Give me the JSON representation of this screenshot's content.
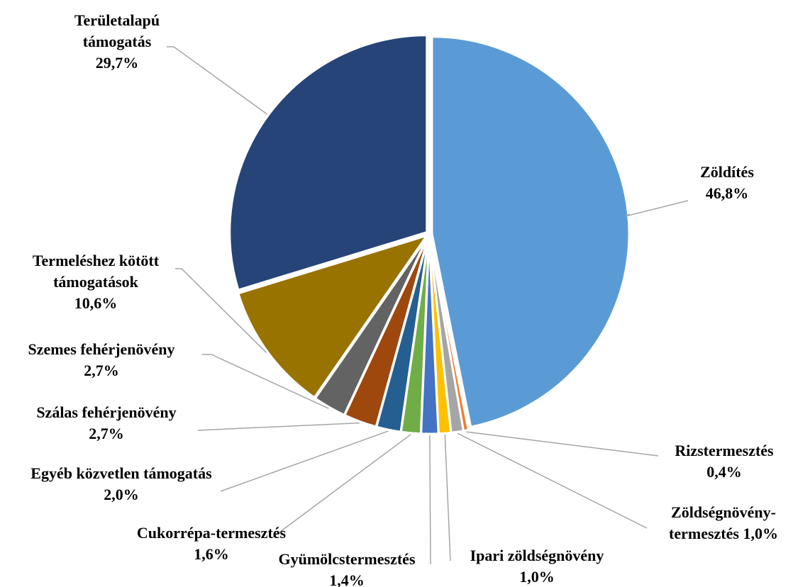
{
  "chart_data": {
    "type": "pie",
    "title": "",
    "slices": [
      {
        "label_lines": [
          "Zöldítés"
        ],
        "value_text": "46,8%",
        "value": 46.8,
        "color": "#5B9BD5"
      },
      {
        "label_lines": [
          "Rizstermesztés"
        ],
        "value_text": "0,4%",
        "value": 0.4,
        "color": "#ED7D31"
      },
      {
        "label_lines": [
          "Zöldségnövény-"
        ],
        "value_text": "termesztés 1,0%",
        "value": 1.0,
        "color": "#A5A5A5"
      },
      {
        "label_lines": [
          "Ipari zöldségnövény"
        ],
        "value_text": "1,0%",
        "value": 1.0,
        "color": "#FFC000"
      },
      {
        "label_lines": [
          "Gyümölcstermesztés"
        ],
        "value_text": "1,4%",
        "value": 1.4,
        "color": "#4472C4"
      },
      {
        "label_lines": [
          "Cukorrépa-termesztés"
        ],
        "value_text": "1,6%",
        "value": 1.6,
        "color": "#70AD47"
      },
      {
        "label_lines": [
          "Egyéb közvetlen támogatás"
        ],
        "value_text": "2,0%",
        "value": 2.0,
        "color": "#255E91"
      },
      {
        "label_lines": [
          "Szálas fehérjenövény"
        ],
        "value_text": "2,7%",
        "value": 2.7,
        "color": "#9E480E"
      },
      {
        "label_lines": [
          "Szemes fehérjenövény"
        ],
        "value_text": "2,7%",
        "value": 2.7,
        "color": "#636363"
      },
      {
        "label_lines": [
          "Termeléshez kötött",
          "támogatások"
        ],
        "value_text": "10,6%",
        "value": 10.6,
        "color": "#997300"
      },
      {
        "label_lines": [
          "Területalapú",
          "támogatás"
        ],
        "value_text": "29,7%",
        "value": 29.7,
        "color": "#264478"
      }
    ]
  }
}
